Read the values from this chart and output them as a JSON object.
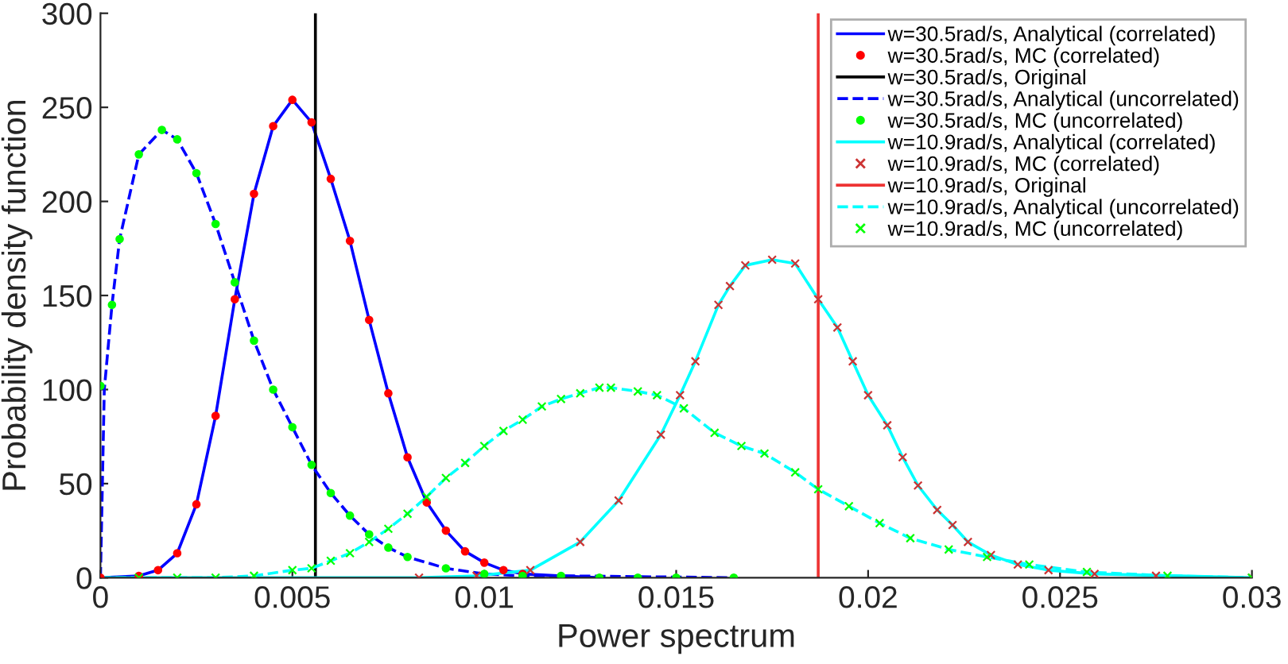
{
  "chart_data": {
    "type": "line",
    "xlabel": "Power spectrum",
    "ylabel": "Probability density function",
    "xlim": [
      0,
      0.03
    ],
    "ylim": [
      0,
      300
    ],
    "xticks": [
      0,
      0.005,
      0.01,
      0.015,
      0.02,
      0.025,
      0.03
    ],
    "yticks": [
      0,
      50,
      100,
      150,
      200,
      250,
      300
    ],
    "grid": false,
    "legend": "top right",
    "series": [
      {
        "name": "w=30.5rad/s, Analytical (correlated)",
        "color": "#0000ff",
        "line_style": "solid",
        "marker": "none",
        "x": [
          0,
          0.001,
          0.0015,
          0.002,
          0.0025,
          0.003,
          0.0035,
          0.004,
          0.0045,
          0.005,
          0.0055,
          0.006,
          0.0065,
          0.007,
          0.0075,
          0.008,
          0.0085,
          0.009,
          0.0095,
          0.01,
          0.0105,
          0.011,
          0.012,
          0.013
        ],
        "values": [
          0,
          1,
          4,
          13,
          39,
          86,
          148,
          204,
          240,
          254,
          242,
          212,
          179,
          137,
          98,
          64,
          40,
          25,
          14,
          8,
          4,
          2,
          1,
          0
        ]
      },
      {
        "name": "w=30.5rad/s, MC (correlated)",
        "type": "scatter",
        "color": "#ff0000",
        "marker": "circle",
        "x": [
          0,
          0.001,
          0.0015,
          0.002,
          0.0025,
          0.003,
          0.0035,
          0.004,
          0.0045,
          0.005,
          0.0055,
          0.006,
          0.0065,
          0.007,
          0.0075,
          0.008,
          0.0085,
          0.009,
          0.0095,
          0.01,
          0.0105,
          0.011
        ],
        "values": [
          0,
          1,
          4,
          13,
          39,
          86,
          148,
          204,
          240,
          254,
          242,
          212,
          179,
          137,
          98,
          64,
          40,
          25,
          14,
          8,
          4,
          2
        ]
      },
      {
        "name": "w=30.5rad/s, Original",
        "color": "#000000",
        "line_style": "solid",
        "marker": "none",
        "x": [
          0.0056,
          0.0056
        ],
        "values": [
          0,
          300
        ]
      },
      {
        "name": "w=30.5rad/s, Analytical (uncorrelated)",
        "color": "#0000ff",
        "line_style": "dashed",
        "marker": "none",
        "x": [
          0,
          0.0001,
          0.0003,
          0.0005,
          0.001,
          0.0016,
          0.002,
          0.0025,
          0.003,
          0.0035,
          0.004,
          0.0045,
          0.005,
          0.0055,
          0.006,
          0.0065,
          0.007,
          0.0075,
          0.008,
          0.009,
          0.01,
          0.011,
          0.012,
          0.0165
        ],
        "values": [
          0,
          100,
          145,
          180,
          225,
          238,
          233,
          215,
          188,
          157,
          126,
          100,
          80,
          60,
          45,
          33,
          23,
          16,
          11,
          5,
          2,
          1,
          1,
          0
        ]
      },
      {
        "name": "w=30.5rad/s, MC (uncorrelated)",
        "type": "scatter",
        "color": "#00ff00",
        "marker": "circle",
        "x": [
          0,
          0.0003,
          0.0005,
          0.001,
          0.0016,
          0.002,
          0.0025,
          0.003,
          0.0035,
          0.004,
          0.0045,
          0.005,
          0.0055,
          0.006,
          0.0065,
          0.007,
          0.0075,
          0.008,
          0.009,
          0.01,
          0.011,
          0.012,
          0.013,
          0.014,
          0.015,
          0.0165
        ],
        "values": [
          102,
          145,
          180,
          225,
          238,
          233,
          215,
          188,
          157,
          126,
          100,
          80,
          60,
          45,
          33,
          23,
          16,
          11,
          5,
          2,
          1,
          1,
          0,
          0,
          0,
          0
        ]
      },
      {
        "name": "w=10.9rad/s, Analytical (correlated)",
        "color": "#00ffff",
        "line_style": "solid",
        "marker": "none",
        "x": [
          0,
          0.0083,
          0.0098,
          0.0112,
          0.0125,
          0.0135,
          0.0146,
          0.0151,
          0.0155,
          0.0161,
          0.0164,
          0.0168,
          0.0175,
          0.0181,
          0.0187,
          0.0192,
          0.0196,
          0.02,
          0.0205,
          0.0209,
          0.0213,
          0.0218,
          0.0222,
          0.0226,
          0.0232,
          0.0239,
          0.0247,
          0.0259,
          0.03
        ],
        "values": [
          0,
          0,
          1,
          4,
          19,
          41,
          76,
          97,
          115,
          145,
          155,
          166,
          169,
          167,
          148,
          133,
          115,
          97,
          81,
          64,
          49,
          36,
          28,
          19,
          12,
          7,
          4,
          2,
          0
        ]
      },
      {
        "name": "w=10.9rad/s, MC (correlated)",
        "type": "scatter",
        "color": "#cc3333",
        "marker": "cross",
        "x": [
          0.0083,
          0.0098,
          0.0112,
          0.0125,
          0.0135,
          0.0146,
          0.0151,
          0.0155,
          0.0161,
          0.0164,
          0.0168,
          0.0175,
          0.0181,
          0.0187,
          0.0192,
          0.0196,
          0.02,
          0.0205,
          0.0209,
          0.0213,
          0.0218,
          0.0222,
          0.0226,
          0.0232,
          0.0239,
          0.0247,
          0.0259,
          0.0275,
          0.03
        ],
        "values": [
          0,
          1,
          4,
          19,
          41,
          76,
          97,
          115,
          145,
          155,
          166,
          169,
          167,
          148,
          133,
          115,
          97,
          81,
          64,
          49,
          36,
          28,
          19,
          12,
          7,
          4,
          2,
          1,
          0
        ]
      },
      {
        "name": "w=10.9rad/s, Original",
        "color": "#ee3333",
        "line_style": "solid",
        "marker": "none",
        "x": [
          0.0187,
          0.0187
        ],
        "values": [
          0,
          300
        ]
      },
      {
        "name": "w=10.9rad/s, Analytical (uncorrelated)",
        "color": "#00ffff",
        "line_style": "dashed",
        "marker": "none",
        "x": [
          0,
          0.003,
          0.004,
          0.005,
          0.0055,
          0.006,
          0.0065,
          0.007,
          0.0075,
          0.008,
          0.0085,
          0.009,
          0.0095,
          0.01,
          0.0105,
          0.011,
          0.0115,
          0.012,
          0.0125,
          0.013,
          0.0133,
          0.014,
          0.0145,
          0.0152,
          0.016,
          0.0167,
          0.0173,
          0.0181,
          0.0187,
          0.0195,
          0.0203,
          0.0211,
          0.0221,
          0.0231,
          0.0242,
          0.0257,
          0.0278,
          0.03
        ],
        "values": [
          0,
          0,
          1,
          4,
          5,
          9,
          13,
          19,
          26,
          34,
          43,
          53,
          61,
          70,
          78,
          84,
          91,
          95,
          98,
          101,
          101,
          99,
          97,
          90,
          77,
          70,
          66,
          56,
          47,
          38,
          29,
          21,
          15,
          11,
          7,
          3,
          1,
          0
        ]
      },
      {
        "name": "w=10.9rad/s, MC (uncorrelated)",
        "type": "scatter",
        "color": "#00ff00",
        "marker": "cross",
        "x": [
          0.001,
          0.002,
          0.003,
          0.004,
          0.005,
          0.0055,
          0.006,
          0.0065,
          0.007,
          0.0075,
          0.008,
          0.0085,
          0.009,
          0.0095,
          0.01,
          0.0105,
          0.011,
          0.0115,
          0.012,
          0.0125,
          0.013,
          0.0133,
          0.014,
          0.0145,
          0.0152,
          0.016,
          0.0167,
          0.0173,
          0.0181,
          0.0187,
          0.0195,
          0.0203,
          0.0211,
          0.0221,
          0.0231,
          0.0242,
          0.0257,
          0.0278,
          0.03
        ],
        "values": [
          0,
          0,
          0,
          1,
          4,
          5,
          9,
          13,
          19,
          26,
          34,
          43,
          53,
          61,
          70,
          78,
          84,
          91,
          95,
          98,
          101,
          101,
          99,
          97,
          90,
          77,
          70,
          66,
          56,
          47,
          38,
          29,
          21,
          15,
          11,
          7,
          3,
          1,
          0
        ]
      }
    ]
  }
}
